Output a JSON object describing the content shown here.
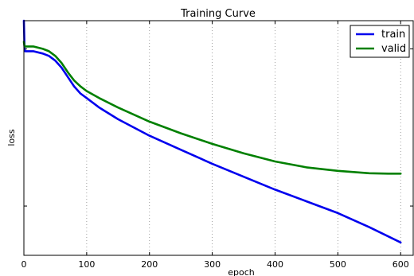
{
  "chart_data": {
    "type": "line",
    "title": "Training Curve",
    "xlabel": "epoch",
    "ylabel": "loss",
    "xlim": [
      0,
      620
    ],
    "ylim": [
      0,
      1
    ],
    "x_ticks": [
      0,
      100,
      200,
      300,
      400,
      500,
      600
    ],
    "grid": "vertical dotted",
    "legend_position": "top-right",
    "series": [
      {
        "name": "train",
        "color": "#0000ee",
        "x": [
          0,
          1,
          2,
          4,
          8,
          15,
          30,
          40,
          50,
          60,
          70,
          80,
          90,
          100,
          120,
          150,
          200,
          250,
          300,
          350,
          400,
          450,
          500,
          550,
          600
        ],
        "y": [
          1.0,
          0.88,
          0.87,
          0.87,
          0.87,
          0.87,
          0.86,
          0.85,
          0.83,
          0.8,
          0.76,
          0.72,
          0.69,
          0.67,
          0.63,
          0.58,
          0.51,
          0.45,
          0.39,
          0.335,
          0.28,
          0.23,
          0.18,
          0.12,
          0.055
        ]
      },
      {
        "name": "valid",
        "color": "#008000",
        "x": [
          0,
          1,
          2,
          4,
          8,
          15,
          30,
          40,
          50,
          60,
          70,
          80,
          90,
          100,
          120,
          150,
          200,
          250,
          300,
          350,
          400,
          450,
          500,
          550,
          580,
          600
        ],
        "y": [
          0.91,
          0.89,
          0.89,
          0.89,
          0.89,
          0.89,
          0.88,
          0.87,
          0.85,
          0.82,
          0.78,
          0.745,
          0.72,
          0.7,
          0.67,
          0.63,
          0.57,
          0.52,
          0.475,
          0.435,
          0.4,
          0.375,
          0.36,
          0.35,
          0.348,
          0.348
        ]
      }
    ]
  }
}
